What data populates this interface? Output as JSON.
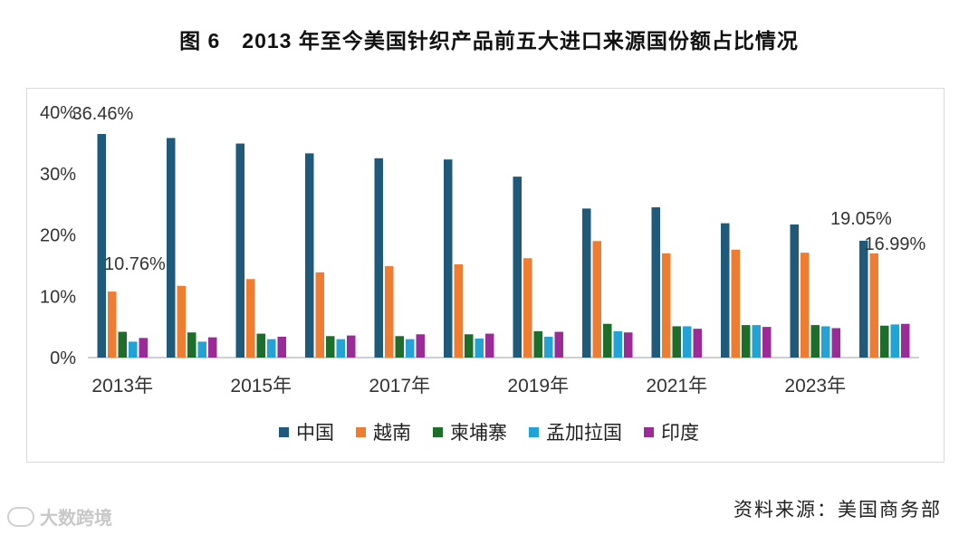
{
  "title": "图 6　2013 年至今美国针织产品前五大进口来源国份额占比情况",
  "source": "资料来源：美国商务部",
  "watermark": "大数跨境",
  "chart_data": {
    "type": "bar",
    "title": "图 6　2013 年至今美国针织产品前五大进口来源国份额占比情况",
    "categories": [
      "2013年",
      "2014年",
      "2015年",
      "2016年",
      "2017年",
      "2018年",
      "2019年",
      "2020年",
      "2021年",
      "2022年",
      "2023年",
      "2024年"
    ],
    "x_tick_labels": [
      "2013年",
      "",
      "2015年",
      "",
      "2017年",
      "",
      "2019年",
      "",
      "2021年",
      "",
      "2023年",
      ""
    ],
    "ylim": [
      0,
      40
    ],
    "y_ticks": [
      0,
      10,
      20,
      30,
      40
    ],
    "y_tick_labels": [
      "0%",
      "10%",
      "20%",
      "30%",
      "40%"
    ],
    "grid": false,
    "legend_position": "bottom",
    "series": [
      {
        "name": "中国",
        "color": "#1f5a7a",
        "values": [
          36.46,
          35.8,
          34.9,
          33.3,
          32.5,
          32.3,
          29.5,
          24.3,
          24.5,
          21.9,
          21.7,
          19.05
        ]
      },
      {
        "name": "越南",
        "color": "#ef7d31",
        "values": [
          10.76,
          11.7,
          12.8,
          13.9,
          14.9,
          15.2,
          16.2,
          19.0,
          17.0,
          17.6,
          17.1,
          16.99
        ]
      },
      {
        "name": "柬埔寨",
        "color": "#1e6e2b",
        "values": [
          4.2,
          4.1,
          3.9,
          3.5,
          3.5,
          3.8,
          4.3,
          5.5,
          5.1,
          5.3,
          5.3,
          5.2
        ]
      },
      {
        "name": "孟加拉国",
        "color": "#21a3d6",
        "values": [
          2.6,
          2.6,
          3.0,
          3.0,
          3.0,
          3.1,
          3.4,
          4.3,
          5.1,
          5.3,
          5.1,
          5.4
        ]
      },
      {
        "name": "印度",
        "color": "#9b2c97",
        "values": [
          3.2,
          3.3,
          3.4,
          3.6,
          3.8,
          3.9,
          4.2,
          4.1,
          4.7,
          5.0,
          4.8,
          5.5
        ]
      }
    ],
    "data_labels": [
      {
        "series": "中国",
        "category": "2013年",
        "text": "36.46%"
      },
      {
        "series": "越南",
        "category": "2013年",
        "text": "10.76%"
      },
      {
        "series": "中国",
        "category": "2024年",
        "text": "19.05%"
      },
      {
        "series": "越南",
        "category": "2024年",
        "text": "16.99%"
      }
    ]
  }
}
